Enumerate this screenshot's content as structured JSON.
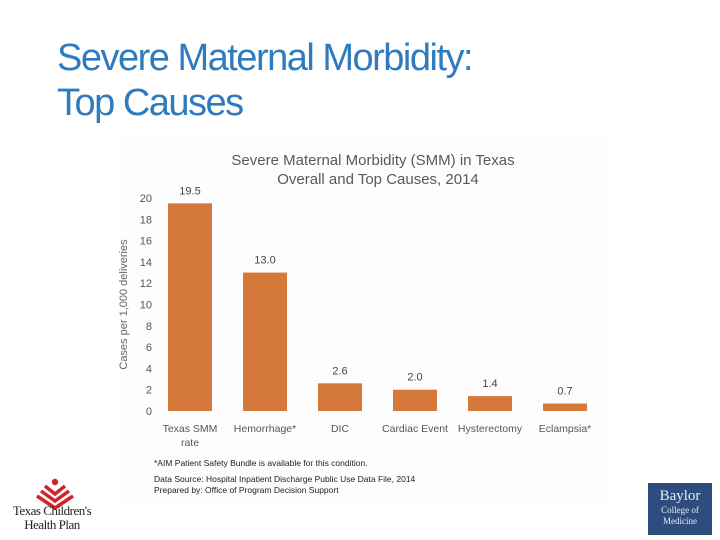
{
  "slide": {
    "title_line1": "Severe Maternal Morbidity:",
    "title_line2": "Top Causes"
  },
  "chart_data": {
    "type": "bar",
    "title_line1": "Severe Maternal Morbidity (SMM) in Texas",
    "title_line2": "Overall and Top Causes, 2014",
    "ylabel": "Cases per 1,000 deliveries",
    "xlabel": "",
    "ylim": [
      0,
      20
    ],
    "yticks": [
      0,
      2,
      4,
      6,
      8,
      10,
      12,
      14,
      16,
      18,
      20
    ],
    "grid": false,
    "categories": [
      [
        "Texas SMM",
        "rate"
      ],
      [
        "Hemorrhage*"
      ],
      [
        "DIC"
      ],
      [
        "Cardiac Event"
      ],
      [
        "Hysterectomy"
      ],
      [
        "Eclampsia*"
      ]
    ],
    "values": [
      19.5,
      13.0,
      2.6,
      2.0,
      1.4,
      0.7
    ],
    "data_labels": [
      "19.5",
      "13.0",
      "2.6",
      "2.0",
      "1.4",
      "0.7"
    ],
    "bar_color": "#d4793a",
    "footnote": "*AIM Patient Safety Bundle is available for this condition.",
    "source_line1": "Data Source: Hospital Inpatient Discharge Public Use Data File, 2014",
    "source_line2": "Prepared by: Office of Program Decision Support"
  },
  "logos": {
    "left_line1": "Texas Children's",
    "left_line2": "Health Plan",
    "right_line1": "Baylor",
    "right_line2": "College of",
    "right_line3": "Medicine"
  },
  "colors": {
    "title": "#2f7bbf",
    "baylor_bg": "#2d4d7f",
    "tch_red": "#d2232a"
  }
}
